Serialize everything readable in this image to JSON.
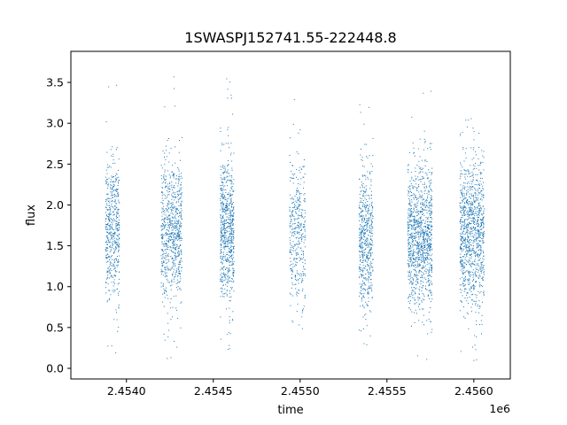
{
  "chart_data": {
    "type": "scatter",
    "title": "1SWASPJ152741.55-222448.8",
    "xlabel": "time",
    "ylabel": "flux",
    "x_offset_label": "1e6",
    "xlim": [
      2.45368,
      2.45621
    ],
    "ylim": [
      -0.13,
      3.88
    ],
    "x_ticks": [
      2.454,
      2.4545,
      2.455,
      2.4555,
      2.456
    ],
    "x_tick_labels": [
      "2.4540",
      "2.4545",
      "2.4550",
      "2.4555",
      "2.4560"
    ],
    "y_ticks": [
      0.0,
      0.5,
      1.0,
      1.5,
      2.0,
      2.5,
      3.0,
      3.5
    ],
    "y_tick_labels": [
      "0.0",
      "0.5",
      "1.0",
      "1.5",
      "2.0",
      "2.5",
      "3.0",
      "3.5"
    ],
    "grid": false,
    "color": "#1f77b4",
    "marker": "point",
    "series_clusters": [
      {
        "x_range": [
          2.45388,
          2.45396
        ],
        "y_center": 1.7,
        "y_range": [
          0.15,
          3.55
        ],
        "count": 520
      },
      {
        "x_range": [
          2.4542,
          2.45432
        ],
        "y_center": 1.65,
        "y_range": [
          0.12,
          3.75
        ],
        "count": 760
      },
      {
        "x_range": [
          2.45454,
          2.45462
        ],
        "y_center": 1.7,
        "y_range": [
          0.18,
          3.65
        ],
        "count": 700
      },
      {
        "x_range": [
          2.45494,
          2.45503
        ],
        "y_center": 1.6,
        "y_range": [
          0.15,
          3.5
        ],
        "count": 380
      },
      {
        "x_range": [
          2.45534,
          2.45542
        ],
        "y_center": 1.6,
        "y_range": [
          0.25,
          3.4
        ],
        "count": 560
      },
      {
        "x_range": [
          2.45562,
          2.45576
        ],
        "y_center": 1.6,
        "y_range": [
          0.05,
          3.4
        ],
        "count": 1100
      },
      {
        "x_range": [
          2.45592,
          2.45606
        ],
        "y_center": 1.65,
        "y_range": [
          0.05,
          3.15
        ],
        "count": 1050
      }
    ]
  }
}
